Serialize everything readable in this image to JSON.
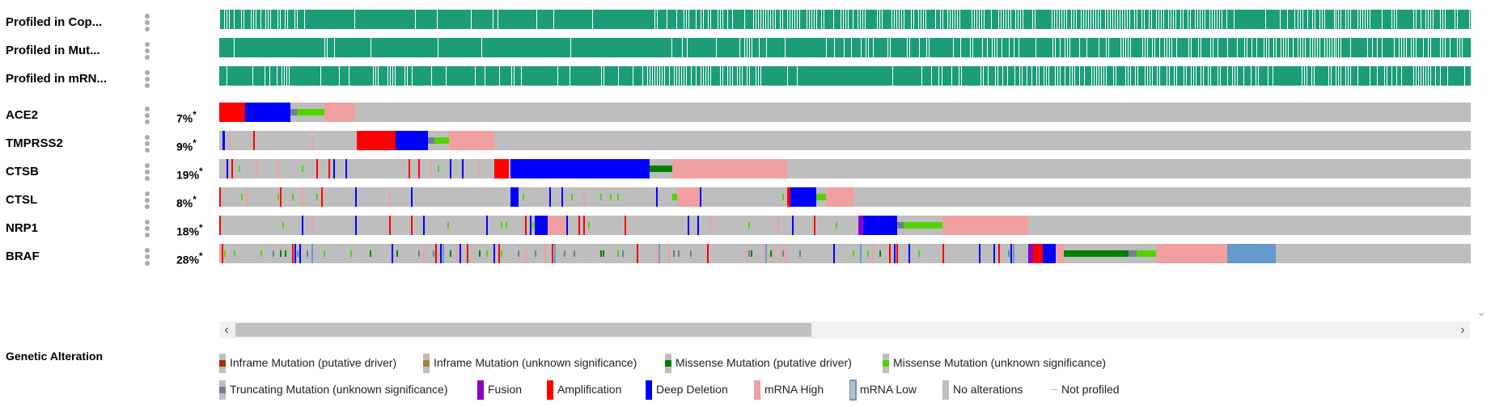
{
  "colors": {
    "profiled": "#1b9e77",
    "no_alteration": "#bebebe",
    "amplification": "#ff0000",
    "deep_deletion": "#0000ff",
    "mrna_high": "#f0a0a0",
    "mrna_low": "#6699cc",
    "missense_driver": "#008000",
    "missense_unknown": "#53d400",
    "truncating_unknown": "#708090",
    "inframe_driver": "#993404",
    "inframe_unknown": "#a68028",
    "fusion": "#8b00c9"
  },
  "clinical_tracks": [
    {
      "label": "Profiled in Cop...",
      "pattern": "copy"
    },
    {
      "label": "Profiled in Mut...",
      "pattern": "mut"
    },
    {
      "label": "Profiled in mRN...",
      "pattern": "mrna"
    }
  ],
  "gene_tracks": [
    {
      "gene": "ACE2",
      "percent": "7%",
      "asterisk": "*"
    },
    {
      "gene": "TMPRSS2",
      "percent": "9%",
      "asterisk": "*"
    },
    {
      "gene": "CTSB",
      "percent": "19%",
      "asterisk": "*"
    },
    {
      "gene": "CTSL",
      "percent": "8%",
      "asterisk": "*"
    },
    {
      "gene": "NRP1",
      "percent": "18%",
      "asterisk": "*"
    },
    {
      "gene": "BRAF",
      "percent": "28%",
      "asterisk": "*"
    }
  ],
  "scrollbar": {
    "left_arrow": "‹",
    "right_arrow": "›",
    "down_arrow": "⌄"
  },
  "legend": {
    "title": "Genetic Alteration",
    "items": [
      {
        "label": "Inframe Mutation (putative driver)",
        "icon": "inframe-driver",
        "color": "#993404"
      },
      {
        "label": "Inframe Mutation (unknown significance)",
        "icon": "inframe-unknown",
        "color": "#a68028"
      },
      {
        "label": "Missense Mutation (putative driver)",
        "icon": "missense-driver",
        "color": "#008000"
      },
      {
        "label": "Missense Mutation (unknown significance)",
        "icon": "missense-unknown",
        "color": "#53d400"
      },
      {
        "label": "Truncating Mutation (unknown significance)",
        "icon": "truncating-unknown",
        "color": "#708090"
      },
      {
        "label": "Fusion",
        "icon": "fusion",
        "color": "#8b00c9"
      },
      {
        "label": "Amplification",
        "icon": "amplification",
        "color": "#ff0000"
      },
      {
        "label": "Deep Deletion",
        "icon": "deep-deletion",
        "color": "#0000ff"
      },
      {
        "label": "mRNA High",
        "icon": "mrna-high",
        "color": "#f0a0a0"
      },
      {
        "label": "mRNA Low",
        "icon": "mrna-low",
        "color": "#6699cc"
      },
      {
        "label": "No alterations",
        "icon": "no-alterations",
        "color": "#bebebe"
      },
      {
        "label": "Not profiled",
        "icon": "not-profiled",
        "color": "#bebebe"
      }
    ]
  }
}
